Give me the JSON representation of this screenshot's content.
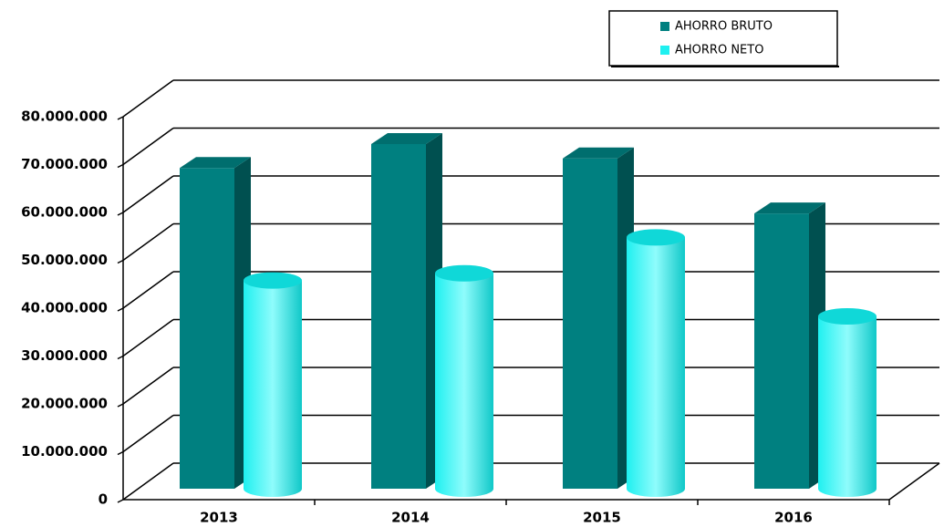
{
  "chart_data": {
    "type": "bar3d",
    "categories": [
      "2013",
      "2014",
      "2015",
      "2016"
    ],
    "series": [
      {
        "name": "AHORRO BRUTO",
        "color": "#008080",
        "values": [
          67000000,
          72000000,
          69000000,
          57500000
        ]
      },
      {
        "name": "AHORRO NETO",
        "color": "#1ff0f0",
        "values": [
          43500000,
          45000000,
          52500000,
          36000000
        ]
      }
    ],
    "ylim": [
      0,
      80000000
    ],
    "yticks": [
      0,
      {
        "value": 10000000,
        "label": "10.000.000"
      },
      {
        "value": 20000000,
        "label": "20.000.000"
      },
      {
        "value": 30000000,
        "label": "30.000.000"
      },
      {
        "value": 40000000,
        "label": "40.000.000"
      },
      {
        "value": 50000000,
        "label": "50.000.000"
      },
      {
        "value": 60000000,
        "label": "60.000.000"
      },
      {
        "value": 70000000,
        "label": "70.000.000"
      },
      {
        "value": 80000000,
        "label": "80.000.000"
      }
    ],
    "grid": true,
    "legend": "top-right"
  }
}
